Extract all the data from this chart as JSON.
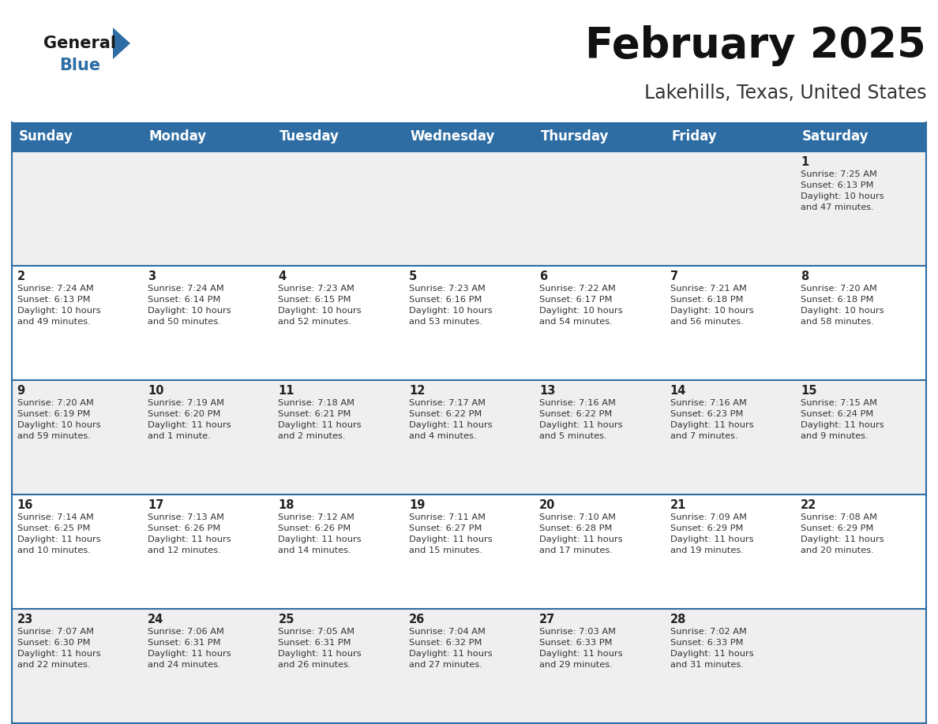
{
  "title": "February 2025",
  "subtitle": "Lakehills, Texas, United States",
  "header_color": "#2E6DA4",
  "header_text_color": "#FFFFFF",
  "row_bg": [
    "#EFEFEF",
    "#FFFFFF",
    "#EFEFEF",
    "#FFFFFF",
    "#EFEFEF"
  ],
  "border_color": "#2E6DA4",
  "day_headers": [
    "Sunday",
    "Monday",
    "Tuesday",
    "Wednesday",
    "Thursday",
    "Friday",
    "Saturday"
  ],
  "weeks": [
    [
      {
        "day": "",
        "info": ""
      },
      {
        "day": "",
        "info": ""
      },
      {
        "day": "",
        "info": ""
      },
      {
        "day": "",
        "info": ""
      },
      {
        "day": "",
        "info": ""
      },
      {
        "day": "",
        "info": ""
      },
      {
        "day": "1",
        "info": "Sunrise: 7:25 AM\nSunset: 6:13 PM\nDaylight: 10 hours\nand 47 minutes."
      }
    ],
    [
      {
        "day": "2",
        "info": "Sunrise: 7:24 AM\nSunset: 6:13 PM\nDaylight: 10 hours\nand 49 minutes."
      },
      {
        "day": "3",
        "info": "Sunrise: 7:24 AM\nSunset: 6:14 PM\nDaylight: 10 hours\nand 50 minutes."
      },
      {
        "day": "4",
        "info": "Sunrise: 7:23 AM\nSunset: 6:15 PM\nDaylight: 10 hours\nand 52 minutes."
      },
      {
        "day": "5",
        "info": "Sunrise: 7:23 AM\nSunset: 6:16 PM\nDaylight: 10 hours\nand 53 minutes."
      },
      {
        "day": "6",
        "info": "Sunrise: 7:22 AM\nSunset: 6:17 PM\nDaylight: 10 hours\nand 54 minutes."
      },
      {
        "day": "7",
        "info": "Sunrise: 7:21 AM\nSunset: 6:18 PM\nDaylight: 10 hours\nand 56 minutes."
      },
      {
        "day": "8",
        "info": "Sunrise: 7:20 AM\nSunset: 6:18 PM\nDaylight: 10 hours\nand 58 minutes."
      }
    ],
    [
      {
        "day": "9",
        "info": "Sunrise: 7:20 AM\nSunset: 6:19 PM\nDaylight: 10 hours\nand 59 minutes."
      },
      {
        "day": "10",
        "info": "Sunrise: 7:19 AM\nSunset: 6:20 PM\nDaylight: 11 hours\nand 1 minute."
      },
      {
        "day": "11",
        "info": "Sunrise: 7:18 AM\nSunset: 6:21 PM\nDaylight: 11 hours\nand 2 minutes."
      },
      {
        "day": "12",
        "info": "Sunrise: 7:17 AM\nSunset: 6:22 PM\nDaylight: 11 hours\nand 4 minutes."
      },
      {
        "day": "13",
        "info": "Sunrise: 7:16 AM\nSunset: 6:22 PM\nDaylight: 11 hours\nand 5 minutes."
      },
      {
        "day": "14",
        "info": "Sunrise: 7:16 AM\nSunset: 6:23 PM\nDaylight: 11 hours\nand 7 minutes."
      },
      {
        "day": "15",
        "info": "Sunrise: 7:15 AM\nSunset: 6:24 PM\nDaylight: 11 hours\nand 9 minutes."
      }
    ],
    [
      {
        "day": "16",
        "info": "Sunrise: 7:14 AM\nSunset: 6:25 PM\nDaylight: 11 hours\nand 10 minutes."
      },
      {
        "day": "17",
        "info": "Sunrise: 7:13 AM\nSunset: 6:26 PM\nDaylight: 11 hours\nand 12 minutes."
      },
      {
        "day": "18",
        "info": "Sunrise: 7:12 AM\nSunset: 6:26 PM\nDaylight: 11 hours\nand 14 minutes."
      },
      {
        "day": "19",
        "info": "Sunrise: 7:11 AM\nSunset: 6:27 PM\nDaylight: 11 hours\nand 15 minutes."
      },
      {
        "day": "20",
        "info": "Sunrise: 7:10 AM\nSunset: 6:28 PM\nDaylight: 11 hours\nand 17 minutes."
      },
      {
        "day": "21",
        "info": "Sunrise: 7:09 AM\nSunset: 6:29 PM\nDaylight: 11 hours\nand 19 minutes."
      },
      {
        "day": "22",
        "info": "Sunrise: 7:08 AM\nSunset: 6:29 PM\nDaylight: 11 hours\nand 20 minutes."
      }
    ],
    [
      {
        "day": "23",
        "info": "Sunrise: 7:07 AM\nSunset: 6:30 PM\nDaylight: 11 hours\nand 22 minutes."
      },
      {
        "day": "24",
        "info": "Sunrise: 7:06 AM\nSunset: 6:31 PM\nDaylight: 11 hours\nand 24 minutes."
      },
      {
        "day": "25",
        "info": "Sunrise: 7:05 AM\nSunset: 6:31 PM\nDaylight: 11 hours\nand 26 minutes."
      },
      {
        "day": "26",
        "info": "Sunrise: 7:04 AM\nSunset: 6:32 PM\nDaylight: 11 hours\nand 27 minutes."
      },
      {
        "day": "27",
        "info": "Sunrise: 7:03 AM\nSunset: 6:33 PM\nDaylight: 11 hours\nand 29 minutes."
      },
      {
        "day": "28",
        "info": "Sunrise: 7:02 AM\nSunset: 6:33 PM\nDaylight: 11 hours\nand 31 minutes."
      },
      {
        "day": "",
        "info": ""
      }
    ]
  ],
  "title_fontsize": 38,
  "subtitle_fontsize": 17,
  "header_fontsize": 12,
  "day_num_fontsize": 10.5,
  "info_fontsize": 8.2,
  "logo_general_fontsize": 15,
  "logo_blue_fontsize": 15
}
